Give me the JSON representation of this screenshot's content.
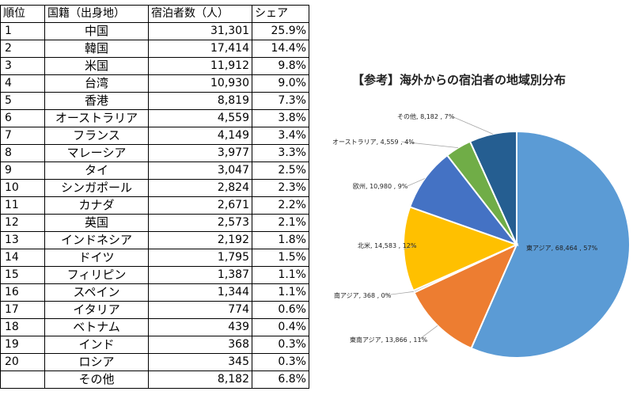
{
  "table": {
    "headers": [
      "順位",
      "国籍（出身地）",
      "宿泊者数（人）",
      "シェア"
    ],
    "rows": [
      [
        "1",
        "中国",
        "31,301",
        "25.9%"
      ],
      [
        "2",
        "韓国",
        "17,414",
        "14.4%"
      ],
      [
        "3",
        "米国",
        "11,912",
        "9.8%"
      ],
      [
        "4",
        "台湾",
        "10,930",
        "9.0%"
      ],
      [
        "5",
        "香港",
        "8,819",
        "7.3%"
      ],
      [
        "6",
        "オーストラリア",
        "4,559",
        "3.8%"
      ],
      [
        "7",
        "フランス",
        "4,149",
        "3.4%"
      ],
      [
        "8",
        "マレーシア",
        "3,977",
        "3.3%"
      ],
      [
        "9",
        "タイ",
        "3,047",
        "2.5%"
      ],
      [
        "10",
        "シンガポール",
        "2,824",
        "2.3%"
      ],
      [
        "11",
        "カナダ",
        "2,671",
        "2.2%"
      ],
      [
        "12",
        "英国",
        "2,573",
        "2.1%"
      ],
      [
        "13",
        "インドネシア",
        "2,192",
        "1.8%"
      ],
      [
        "14",
        "ドイツ",
        "1,795",
        "1.5%"
      ],
      [
        "15",
        "フィリピン",
        "1,387",
        "1.1%"
      ],
      [
        "16",
        "スペイン",
        "1,344",
        "1.1%"
      ],
      [
        "17",
        "イタリア",
        "774",
        "0.6%"
      ],
      [
        "18",
        "ベトナム",
        "439",
        "0.4%"
      ],
      [
        "19",
        "インド",
        "368",
        "0.3%"
      ],
      [
        "20",
        "ロシア",
        "345",
        "0.3%"
      ],
      [
        "",
        "その他",
        "8,182",
        "6.8%"
      ]
    ]
  },
  "chart_data": [
    {
      "type": "table",
      "columns": [
        "順位",
        "国籍（出身地）",
        "宿泊者数（人）",
        "シェア"
      ],
      "rows": [
        [
          1,
          "中国",
          31301,
          25.9
        ],
        [
          2,
          "韓国",
          17414,
          14.4
        ],
        [
          3,
          "米国",
          11912,
          9.8
        ],
        [
          4,
          "台湾",
          10930,
          9.0
        ],
        [
          5,
          "香港",
          8819,
          7.3
        ],
        [
          6,
          "オーストラリア",
          4559,
          3.8
        ],
        [
          7,
          "フランス",
          4149,
          3.4
        ],
        [
          8,
          "マレーシア",
          3977,
          3.3
        ],
        [
          9,
          "タイ",
          3047,
          2.5
        ],
        [
          10,
          "シンガポール",
          2824,
          2.3
        ],
        [
          11,
          "カナダ",
          2671,
          2.2
        ],
        [
          12,
          "英国",
          2573,
          2.1
        ],
        [
          13,
          "インドネシア",
          2192,
          1.8
        ],
        [
          14,
          "ドイツ",
          1795,
          1.5
        ],
        [
          15,
          "フィリピン",
          1387,
          1.1
        ],
        [
          16,
          "スペイン",
          1344,
          1.1
        ],
        [
          17,
          "イタリア",
          774,
          0.6
        ],
        [
          18,
          "ベトナム",
          439,
          0.4
        ],
        [
          19,
          "インド",
          368,
          0.3
        ],
        [
          20,
          "ロシア",
          345,
          0.3
        ],
        [
          null,
          "その他",
          8182,
          6.8
        ]
      ]
    },
    {
      "type": "pie",
      "title": "【参考】海外からの宿泊者の地域別分布",
      "slices": [
        {
          "label": "東アジア",
          "value": 68464,
          "pct": 57,
          "color": "#5b9bd5",
          "text": "東アジア, 68,464 , 57%"
        },
        {
          "label": "東南アジア",
          "value": 13866,
          "pct": 11,
          "color": "#ed7d31",
          "text": "東南アジア, 13,866 , 11%"
        },
        {
          "label": "南アジア",
          "value": 368,
          "pct": 0,
          "color": "#a5a5a5",
          "text": "南アジア, 368 , 0%"
        },
        {
          "label": "北米",
          "value": 14583,
          "pct": 12,
          "color": "#ffc000",
          "text": "北米, 14,583 , 12%"
        },
        {
          "label": "欧州",
          "value": 10980,
          "pct": 9,
          "color": "#4472c4",
          "text": "欧州, 10,980 , 9%"
        },
        {
          "label": "オーストラリア",
          "value": 4559,
          "pct": 4,
          "color": "#70ad47",
          "text": "オーストラリア, 4,559 , 4%"
        },
        {
          "label": "その他",
          "value": 8182,
          "pct": 7,
          "color": "#255e91",
          "text": "その他, 8,182 , 7%"
        }
      ]
    }
  ]
}
